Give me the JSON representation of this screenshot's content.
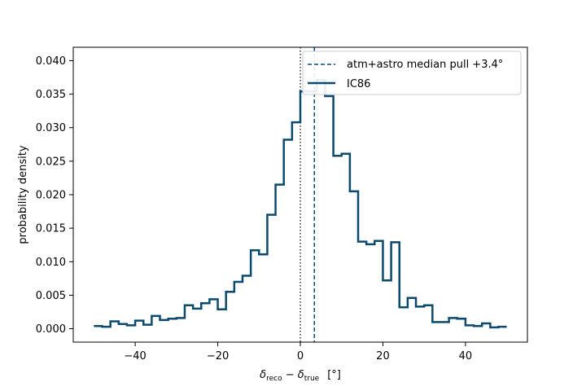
{
  "chart_data": {
    "type": "histogram-step",
    "xlabel_parts": {
      "delta": "δ",
      "sub_reco": "reco",
      "minus": " − ",
      "sub_true": "true",
      "unit": "[°]"
    },
    "ylabel": "probability density",
    "xlim": [
      -55,
      55
    ],
    "ylim": [
      -0.002,
      0.042
    ],
    "xticks": [
      -40,
      -20,
      0,
      20,
      40
    ],
    "xtick_labels": [
      "−40",
      "−20",
      "0",
      "20",
      "40"
    ],
    "yticks": [
      0.0,
      0.005,
      0.01,
      0.015,
      0.02,
      0.025,
      0.03,
      0.035,
      0.04
    ],
    "ytick_labels": [
      "0.000",
      "0.005",
      "0.010",
      "0.015",
      "0.020",
      "0.025",
      "0.030",
      "0.035",
      "0.040"
    ],
    "grid": false,
    "legend_position": "top-right",
    "colors": {
      "series": "#0b4a6e",
      "reference": "#000000"
    },
    "reference_line": {
      "x": 0,
      "style": "dotted"
    },
    "median_line": {
      "x": 3.4,
      "label": "atm+astro median pull +3.4°",
      "style": "dashed"
    },
    "series": [
      {
        "name": "IC86",
        "bin_edges": [
          -50,
          -48,
          -46,
          -44,
          -42,
          -40,
          -38,
          -36,
          -34,
          -32,
          -30,
          -28,
          -26,
          -24,
          -22,
          -20,
          -18,
          -16,
          -14,
          -12,
          -10,
          -8,
          -6,
          -4,
          -2,
          0,
          2,
          4,
          6,
          8,
          10,
          12,
          14,
          16,
          18,
          20,
          22,
          24,
          26,
          28,
          30,
          32,
          34,
          36,
          38,
          40,
          42,
          44,
          46,
          48,
          50
        ],
        "values": [
          0.0004,
          0.0003,
          0.0011,
          0.0007,
          0.0005,
          0.0012,
          0.0006,
          0.0019,
          0.0013,
          0.0015,
          0.0016,
          0.0035,
          0.003,
          0.0038,
          0.0044,
          0.0029,
          0.0055,
          0.007,
          0.0079,
          0.0117,
          0.0111,
          0.017,
          0.0215,
          0.0282,
          0.0308,
          0.0354,
          0.0354,
          0.0371,
          0.0347,
          0.0258,
          0.0261,
          0.0205,
          0.013,
          0.0126,
          0.0131,
          0.0072,
          0.0129,
          0.0032,
          0.0046,
          0.0033,
          0.0035,
          0.001,
          0.001,
          0.0016,
          0.0015,
          0.0005,
          0.0004,
          0.0008,
          0.0002,
          0.0003
        ]
      }
    ]
  }
}
